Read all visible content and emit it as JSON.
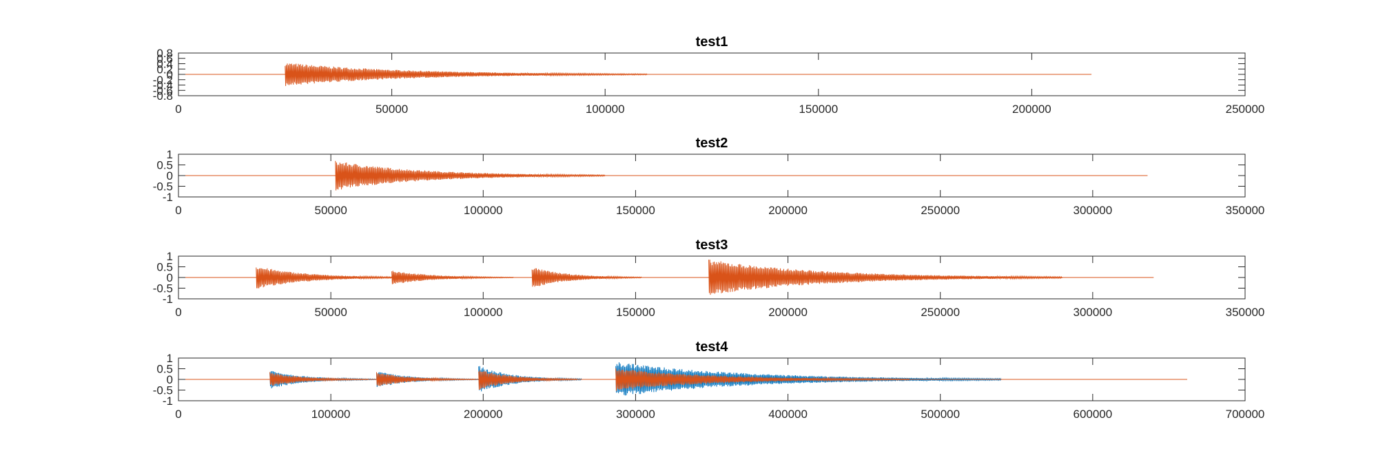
{
  "colors": {
    "series_a": "#0072BD",
    "series_b": "#D95319",
    "axes": "#262626",
    "background": "#ffffff"
  },
  "chart_data": [
    {
      "type": "line",
      "title": "test1",
      "xlabel": "",
      "ylabel": "",
      "xlim": [
        0,
        250000
      ],
      "ylim": [
        -0.8,
        0.8
      ],
      "xticks": [
        "0",
        "50000",
        "100000",
        "150000",
        "200000",
        "250000"
      ],
      "yticks": [
        "-0.8",
        "-0.6",
        "-0.4",
        "-0.2",
        "0",
        "0.2",
        "0.4",
        "0.6",
        "0.8"
      ],
      "signal_end": 214000,
      "grid": false,
      "series": [
        {
          "color": "#D95319",
          "bursts": [
            {
              "start": 25000,
              "peak": 0.45,
              "decay_end": 110000
            }
          ]
        }
      ]
    },
    {
      "type": "line",
      "title": "test2",
      "xlabel": "",
      "ylabel": "",
      "xlim": [
        0,
        350000
      ],
      "ylim": [
        -1,
        1
      ],
      "xticks": [
        "0",
        "50000",
        "100000",
        "150000",
        "200000",
        "250000",
        "300000",
        "350000"
      ],
      "yticks": [
        "-1",
        "-0.5",
        "0",
        "0.5",
        "1"
      ],
      "signal_end": 318000,
      "grid": false,
      "series": [
        {
          "color": "#D95319",
          "bursts": [
            {
              "start": 51500,
              "peak": 0.7,
              "decay_end": 140000
            }
          ]
        }
      ]
    },
    {
      "type": "line",
      "title": "test3",
      "xlabel": "",
      "ylabel": "",
      "xlim": [
        0,
        350000
      ],
      "ylim": [
        -1,
        1
      ],
      "xticks": [
        "0",
        "50000",
        "100000",
        "150000",
        "200000",
        "250000",
        "300000",
        "350000"
      ],
      "yticks": [
        "-1",
        "-0.5",
        "0",
        "0.5",
        "1"
      ],
      "signal_end": 320000,
      "grid": false,
      "series": [
        {
          "color": "#D95319",
          "bursts": [
            {
              "start": 25500,
              "peak": 0.55,
              "decay_end": 75000
            },
            {
              "start": 70000,
              "peak": 0.35,
              "decay_end": 110000
            },
            {
              "start": 116000,
              "peak": 0.5,
              "decay_end": 152000
            },
            {
              "start": 174000,
              "peak": 0.85,
              "decay_end": 290000
            }
          ]
        }
      ]
    },
    {
      "type": "line",
      "title": "test4",
      "xlabel": "",
      "ylabel": "",
      "xlim": [
        0,
        700000
      ],
      "ylim": [
        -1,
        1
      ],
      "xticks": [
        "0",
        "100000",
        "200000",
        "300000",
        "400000",
        "500000",
        "600000",
        "700000"
      ],
      "yticks": [
        "-1",
        "-0.5",
        "0",
        "0.5",
        "1"
      ],
      "signal_end": 662000,
      "grid": false,
      "series": [
        {
          "color": "#0072BD",
          "bursts": [
            {
              "start": 60000,
              "peak": 0.45,
              "decay_end": 130000
            },
            {
              "start": 130000,
              "peak": 0.4,
              "decay_end": 198000
            },
            {
              "start": 197000,
              "peak": 0.65,
              "decay_end": 265000
            },
            {
              "start": 287000,
              "peak": 0.85,
              "decay_end": 540000
            }
          ]
        },
        {
          "color": "#D95319",
          "bursts": [
            {
              "start": 60000,
              "peak": 0.35,
              "decay_end": 125000
            },
            {
              "start": 130000,
              "peak": 0.35,
              "decay_end": 195000
            },
            {
              "start": 197000,
              "peak": 0.5,
              "decay_end": 262000
            },
            {
              "start": 287000,
              "peak": 0.55,
              "decay_end": 480000
            }
          ]
        }
      ]
    }
  ]
}
